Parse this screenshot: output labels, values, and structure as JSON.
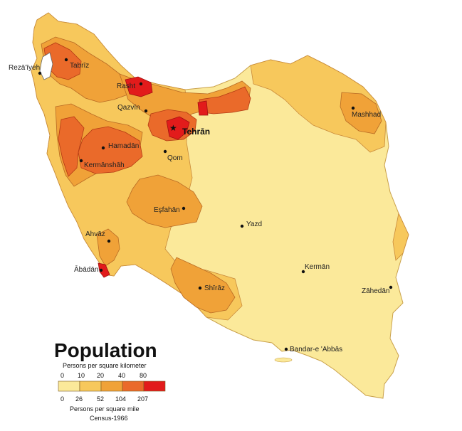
{
  "map": {
    "title": "Population",
    "legend": {
      "top_caption": "Persons per square kilometer",
      "km_ticks": [
        "0",
        "10",
        "20",
        "40",
        "80"
      ],
      "mile_ticks": [
        "0",
        "26",
        "52",
        "104",
        "207"
      ],
      "bottom_caption": "Persons per square mile",
      "census": "Census-1966",
      "classes": [
        {
          "range": "0-10",
          "color": "#fbe99a"
        },
        {
          "range": "10-20",
          "color": "#f7c85c"
        },
        {
          "range": "20-40",
          "color": "#f0a238"
        },
        {
          "range": "40-80",
          "color": "#ea6a2a"
        },
        {
          "range": "80+",
          "color": "#e21b1b"
        }
      ]
    },
    "cities": [
      {
        "name": "Rezā'īyeh"
      },
      {
        "name": "Tabrīz"
      },
      {
        "name": "Rasht"
      },
      {
        "name": "Qazvīn"
      },
      {
        "name": "Tehrān",
        "capital": true
      },
      {
        "name": "Hamadān"
      },
      {
        "name": "Qom"
      },
      {
        "name": "Kermānshāh"
      },
      {
        "name": "Mashhad"
      },
      {
        "name": "Eşfahān"
      },
      {
        "name": "Yazd"
      },
      {
        "name": "Ahvāz"
      },
      {
        "name": "Ābādān"
      },
      {
        "name": "Shīrāz"
      },
      {
        "name": "Kermān"
      },
      {
        "name": "Zāhedān"
      },
      {
        "name": "Bandar-e 'Abbās"
      }
    ]
  }
}
